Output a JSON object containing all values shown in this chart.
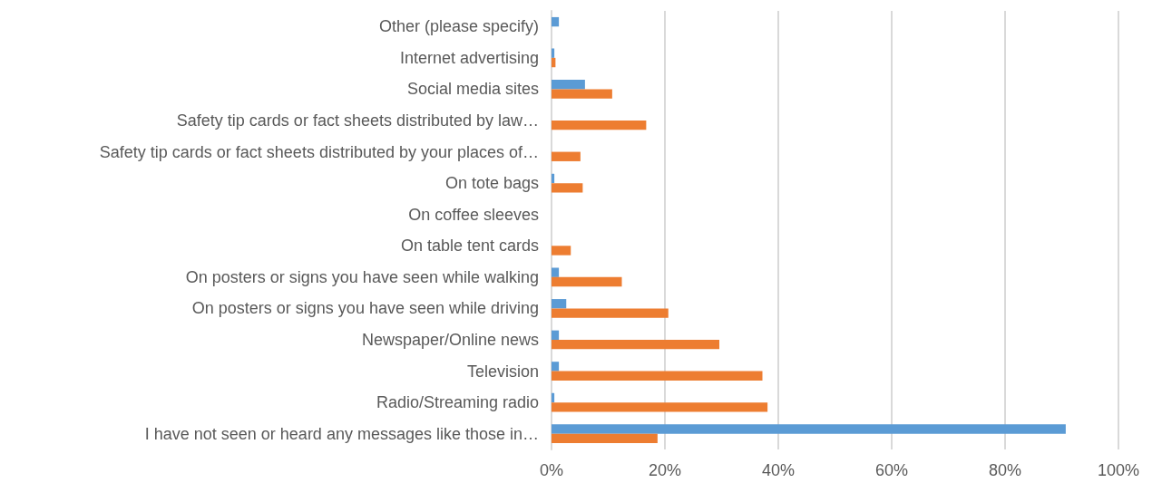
{
  "chart_data": {
    "type": "bar",
    "orientation": "horizontal",
    "categories": [
      "Other (please specify)",
      "Internet advertising",
      "Social media sites",
      "Safety tip cards or fact sheets distributed by law…",
      "Safety tip cards or fact sheets distributed by your places of…",
      "On tote bags",
      "On coffee sleeves",
      "On table tent cards",
      "On posters or signs you have seen while walking",
      "On posters or signs you have seen while driving",
      "Newspaper/Online news",
      "Television",
      "Radio/Streaming radio",
      "I have not seen or heard any messages like those in…"
    ],
    "series": [
      {
        "color": "#5b9bd5",
        "values": [
          1.3,
          0.5,
          5.9,
          0,
          0,
          0.5,
          0,
          0,
          1.3,
          2.6,
          1.3,
          1.3,
          0.5,
          90.7
        ]
      },
      {
        "color": "#ed7d31",
        "values": [
          0,
          0.7,
          10.7,
          16.7,
          5.1,
          5.5,
          0,
          3.4,
          12.4,
          20.6,
          29.6,
          37.2,
          38.1,
          18.7
        ]
      }
    ],
    "xlim": [
      0,
      100
    ],
    "xticks": [
      {
        "value": 0,
        "label": "0%"
      },
      {
        "value": 20,
        "label": "20%"
      },
      {
        "value": 40,
        "label": "40%"
      },
      {
        "value": 60,
        "label": "60%"
      },
      {
        "value": 80,
        "label": "80%"
      },
      {
        "value": 100,
        "label": "100%"
      }
    ],
    "grid": "x"
  }
}
